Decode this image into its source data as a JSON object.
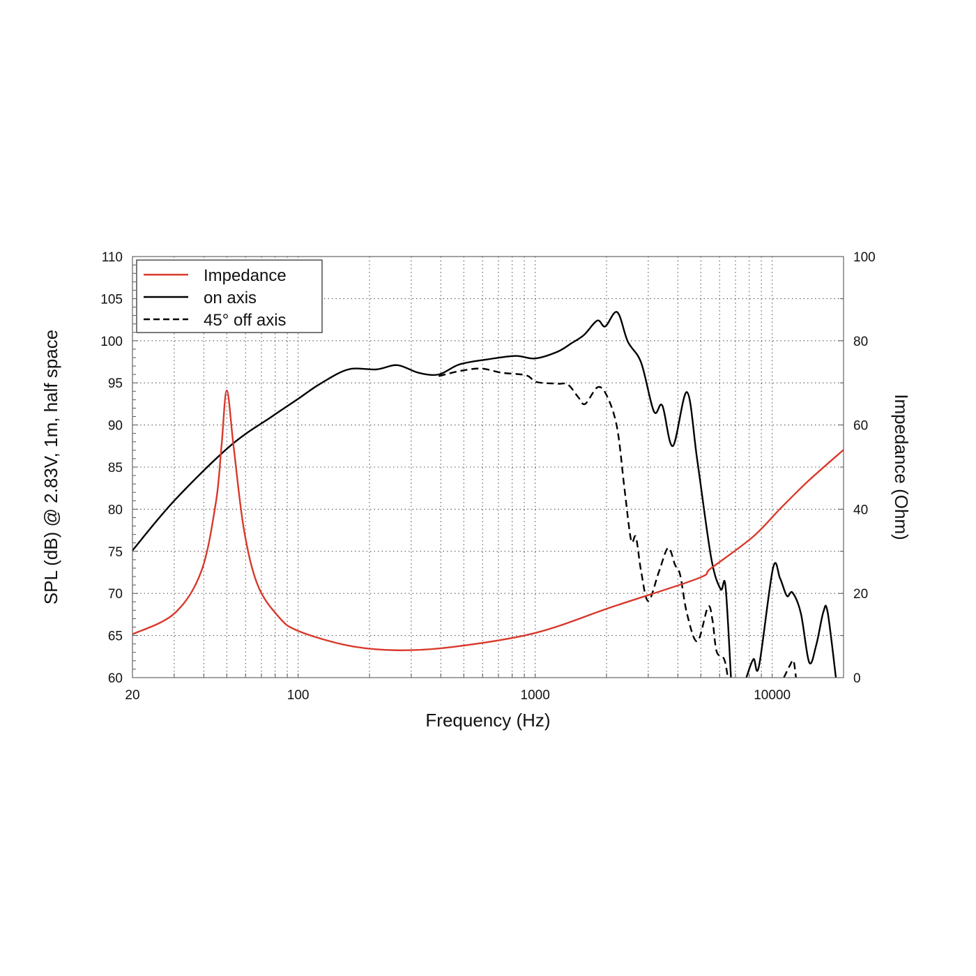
{
  "chart_data": {
    "type": "line",
    "title": "",
    "xlabel": "Frequency (Hz)",
    "ylabel_left": "SPL (dB) @ 2.83V, 1m, half space",
    "ylabel_right": "Impedance (Ohm)",
    "x_scale": "log",
    "xlim": [
      20,
      20000
    ],
    "ylim_left": [
      60,
      110
    ],
    "ylim_right": [
      0,
      100
    ],
    "x_tick_labels": [
      "20",
      "100",
      "1000",
      "10000"
    ],
    "y_left_tick_labels": [
      "60",
      "65",
      "70",
      "75",
      "80",
      "85",
      "90",
      "95",
      "100",
      "105",
      "110"
    ],
    "y_right_tick_labels": [
      "0",
      "20",
      "40",
      "60",
      "80",
      "100"
    ],
    "grid": true,
    "legend_position": "top-left",
    "colors": {
      "impedance": "#d8392b",
      "on_axis": "#000000",
      "off_axis": "#000000"
    },
    "series": [
      {
        "name": "Impedance",
        "axis": "right",
        "style": "solid",
        "x": [
          20,
          30,
          39,
          45,
          47.5,
          50,
          53.4,
          59.1,
          67.6,
          82.9,
          100,
          163,
          262,
          451,
          1000,
          2140,
          4830,
          5530,
          8280,
          10800,
          14200,
          20000
        ],
        "y": [
          10.3,
          15.2,
          25.2,
          41.7,
          55,
          68.2,
          55,
          35.1,
          21.9,
          14.4,
          11.1,
          7.6,
          6.5,
          7.3,
          10.6,
          16.9,
          23.5,
          26.0,
          33.4,
          40.1,
          46.7,
          54.1
        ]
      },
      {
        "name": "on axis",
        "axis": "left",
        "style": "solid",
        "x": [
          20,
          30,
          51.6,
          77.5,
          100,
          124,
          163,
          214,
          262,
          322,
          392,
          480,
          632,
          827,
          1000,
          1243,
          1422,
          1608,
          1830,
          1975,
          2219,
          2460,
          2800,
          3170,
          3440,
          3810,
          4370,
          4830,
          5530,
          6060,
          6350,
          6700,
          null,
          7780,
          8340,
          8800,
          10080,
          10790,
          11540,
          12180,
          13220,
          14330,
          15350,
          16440,
          17130,
          18570
        ],
        "y": [
          75.1,
          81.0,
          87.5,
          91.0,
          93.1,
          94.9,
          96.6,
          96.6,
          97.1,
          96.2,
          96.0,
          97.2,
          97.8,
          98.2,
          97.9,
          98.7,
          99.7,
          100.7,
          102.4,
          101.7,
          103.4,
          99.9,
          97.4,
          91.6,
          92.3,
          87.5,
          93.9,
          85.8,
          74.2,
          70.5,
          70.9,
          60,
          null,
          60,
          62.2,
          61.4,
          73.0,
          71.8,
          69.7,
          70.1,
          67.6,
          61.8,
          63.9,
          67.8,
          67.8,
          60
        ]
      },
      {
        "name": "45° off axis",
        "axis": "left",
        "style": "dashed",
        "x": [
          392,
          480,
          590,
          725,
          915,
          1015,
          1243,
          1375,
          1520,
          1625,
          1840,
          2020,
          2219,
          2380,
          2540,
          2660,
          2800,
          3000,
          3330,
          3640,
          3890,
          4090,
          4370,
          4830,
          5360,
          5600,
          5830,
          6270,
          6500,
          null,
          11200,
          11900,
          12300,
          12600
        ],
        "y": [
          95.8,
          96.4,
          96.7,
          96.2,
          95.9,
          95.1,
          94.9,
          94.8,
          93.3,
          92.5,
          94.5,
          93.3,
          89.6,
          82.5,
          76.3,
          76.7,
          72.6,
          69.1,
          72.6,
          75.4,
          73.4,
          72.2,
          67.6,
          64.3,
          68.4,
          66.8,
          63.1,
          62.2,
          60,
          null,
          60,
          61.5,
          62,
          60
        ]
      }
    ]
  }
}
